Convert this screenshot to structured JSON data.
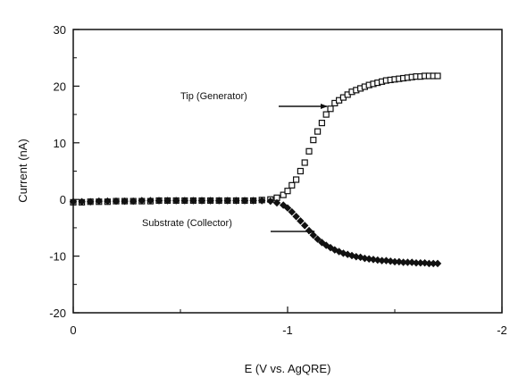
{
  "chart_data": {
    "type": "scatter",
    "title": "",
    "xlabel": "E (V vs. AgQRE)",
    "ylabel": "Current (nA)",
    "xlim": [
      0,
      -2
    ],
    "ylim": [
      -20,
      30
    ],
    "x_ticks": [
      0,
      -1,
      -2
    ],
    "x_tick_labels": [
      "0",
      "-1",
      "-2"
    ],
    "y_ticks": [
      -20,
      -10,
      0,
      10,
      20,
      30
    ],
    "y_tick_labels": [
      "-20",
      "-10",
      "0",
      "10",
      "20",
      "30"
    ],
    "grid": false,
    "legend": "none",
    "annotations": [
      {
        "text": "Tip (Generator)",
        "points_to_series": "tip",
        "arrow_to": [
          -1.1,
          15
        ]
      },
      {
        "text": "Substrate (Collector)",
        "points_to_series": "substrate",
        "arrow_to": [
          -1.1,
          -6
        ]
      }
    ],
    "series": [
      {
        "id": "tip",
        "marker": "open-square",
        "x": [
          0,
          -0.04,
          -0.08,
          -0.12,
          -0.16,
          -0.2,
          -0.24,
          -0.28,
          -0.32,
          -0.36,
          -0.4,
          -0.44,
          -0.48,
          -0.52,
          -0.56,
          -0.6,
          -0.64,
          -0.68,
          -0.72,
          -0.76,
          -0.8,
          -0.84,
          -0.88,
          -0.92,
          -0.95,
          -0.98,
          -1.0,
          -1.02,
          -1.04,
          -1.06,
          -1.08,
          -1.1,
          -1.12,
          -1.14,
          -1.16,
          -1.18,
          -1.2,
          -1.22,
          -1.24,
          -1.26,
          -1.28,
          -1.3,
          -1.32,
          -1.34,
          -1.36,
          -1.38,
          -1.4,
          -1.42,
          -1.44,
          -1.46,
          -1.48,
          -1.5,
          -1.52,
          -1.54,
          -1.56,
          -1.58,
          -1.6,
          -1.62,
          -1.64,
          -1.66,
          -1.68,
          -1.7
        ],
        "y": [
          -0.5,
          -0.5,
          -0.4,
          -0.4,
          -0.4,
          -0.3,
          -0.3,
          -0.3,
          -0.3,
          -0.3,
          -0.2,
          -0.2,
          -0.2,
          -0.2,
          -0.2,
          -0.2,
          -0.2,
          -0.2,
          -0.2,
          -0.2,
          -0.2,
          -0.2,
          -0.1,
          0.0,
          0.3,
          0.8,
          1.5,
          2.5,
          3.5,
          5.0,
          6.5,
          8.5,
          10.5,
          12.0,
          13.5,
          15.0,
          16.0,
          17.0,
          17.5,
          18.0,
          18.5,
          19.0,
          19.3,
          19.6,
          19.9,
          20.2,
          20.4,
          20.6,
          20.8,
          21.0,
          21.1,
          21.2,
          21.3,
          21.4,
          21.5,
          21.6,
          21.7,
          21.7,
          21.8,
          21.8,
          21.8,
          21.8
        ]
      },
      {
        "id": "substrate",
        "marker": "filled-diamond",
        "x": [
          0,
          -0.04,
          -0.08,
          -0.12,
          -0.16,
          -0.2,
          -0.24,
          -0.28,
          -0.32,
          -0.36,
          -0.4,
          -0.44,
          -0.48,
          -0.52,
          -0.56,
          -0.6,
          -0.64,
          -0.68,
          -0.72,
          -0.76,
          -0.8,
          -0.84,
          -0.88,
          -0.92,
          -0.95,
          -0.98,
          -1.0,
          -1.02,
          -1.04,
          -1.06,
          -1.08,
          -1.1,
          -1.12,
          -1.14,
          -1.16,
          -1.18,
          -1.2,
          -1.22,
          -1.24,
          -1.26,
          -1.28,
          -1.3,
          -1.32,
          -1.34,
          -1.36,
          -1.38,
          -1.4,
          -1.42,
          -1.44,
          -1.46,
          -1.48,
          -1.5,
          -1.52,
          -1.54,
          -1.56,
          -1.58,
          -1.6,
          -1.62,
          -1.64,
          -1.66,
          -1.68,
          -1.7
        ],
        "y": [
          -0.4,
          -0.4,
          -0.4,
          -0.3,
          -0.3,
          -0.3,
          -0.3,
          -0.3,
          -0.2,
          -0.2,
          -0.2,
          -0.2,
          -0.2,
          -0.2,
          -0.2,
          -0.2,
          -0.2,
          -0.2,
          -0.2,
          -0.2,
          -0.2,
          -0.2,
          -0.2,
          -0.3,
          -0.6,
          -1.0,
          -1.5,
          -2.2,
          -3.0,
          -3.8,
          -4.6,
          -5.5,
          -6.3,
          -7.0,
          -7.6,
          -8.1,
          -8.5,
          -8.9,
          -9.2,
          -9.5,
          -9.7,
          -9.9,
          -10.1,
          -10.2,
          -10.4,
          -10.5,
          -10.6,
          -10.7,
          -10.8,
          -10.8,
          -10.9,
          -11.0,
          -11.0,
          -11.1,
          -11.1,
          -11.1,
          -11.2,
          -11.2,
          -11.2,
          -11.3,
          -11.3,
          -11.3
        ]
      }
    ]
  }
}
